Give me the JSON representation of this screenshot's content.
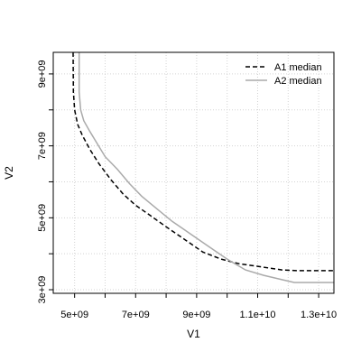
{
  "chart_data": {
    "type": "line",
    "title": "",
    "xlabel": "V1",
    "ylabel": "V2",
    "xlim": [
      4300000000,
      13500000000
    ],
    "ylim": [
      2900000000,
      9600000000
    ],
    "grid": true,
    "legend_position": "top-right",
    "x_ticks": [
      {
        "value": 5000000000,
        "label": "5e+09"
      },
      {
        "value": 7000000000,
        "label": "7e+09"
      },
      {
        "value": 9000000000,
        "label": "9e+09"
      },
      {
        "value": 11000000000,
        "label": "1.1e+10"
      },
      {
        "value": 13000000000,
        "label": "1.3e+10"
      }
    ],
    "y_ticks": [
      {
        "value": 3000000000,
        "label": "3e+09"
      },
      {
        "value": 5000000000,
        "label": "5e+09"
      },
      {
        "value": 7000000000,
        "label": "7e+09"
      },
      {
        "value": 9000000000,
        "label": "9e+09"
      }
    ],
    "series": [
      {
        "name": "A1 median",
        "color": "#000000",
        "dash": "dashed",
        "points": [
          [
            4950000000,
            9600000000
          ],
          [
            4960000000,
            8500000000
          ],
          [
            5000000000,
            8000000000
          ],
          [
            5100000000,
            7600000000
          ],
          [
            5250000000,
            7300000000
          ],
          [
            5500000000,
            6900000000
          ],
          [
            5800000000,
            6500000000
          ],
          [
            6200000000,
            6050000000
          ],
          [
            6600000000,
            5650000000
          ],
          [
            7000000000,
            5350000000
          ],
          [
            7500000000,
            5050000000
          ],
          [
            8000000000,
            4750000000
          ],
          [
            8600000000,
            4400000000
          ],
          [
            9200000000,
            4050000000
          ],
          [
            9800000000,
            3850000000
          ],
          [
            10400000000,
            3720000000
          ],
          [
            11000000000,
            3650000000
          ],
          [
            11800000000,
            3550000000
          ],
          [
            12300000000,
            3530000000
          ],
          [
            13500000000,
            3530000000
          ]
        ]
      },
      {
        "name": "A2 median",
        "color": "#aaaaaa",
        "dash": "solid",
        "points": [
          [
            5150000000,
            9600000000
          ],
          [
            5150000000,
            8500000000
          ],
          [
            5200000000,
            8000000000
          ],
          [
            5300000000,
            7700000000
          ],
          [
            5500000000,
            7400000000
          ],
          [
            5750000000,
            7050000000
          ],
          [
            6000000000,
            6700000000
          ],
          [
            6400000000,
            6350000000
          ],
          [
            6800000000,
            5950000000
          ],
          [
            7200000000,
            5600000000
          ],
          [
            7700000000,
            5250000000
          ],
          [
            8200000000,
            4900000000
          ],
          [
            8800000000,
            4550000000
          ],
          [
            9400000000,
            4200000000
          ],
          [
            10000000000,
            3850000000
          ],
          [
            10600000000,
            3550000000
          ],
          [
            11200000000,
            3400000000
          ],
          [
            11800000000,
            3280000000
          ],
          [
            12200000000,
            3200000000
          ],
          [
            13500000000,
            3200000000
          ]
        ]
      }
    ]
  }
}
